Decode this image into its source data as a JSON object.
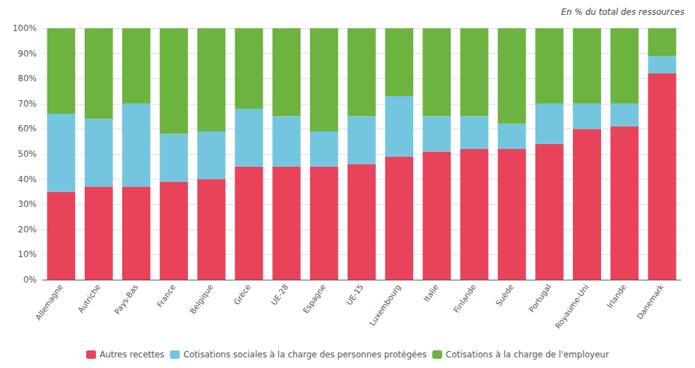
{
  "chart_data": {
    "type": "bar",
    "annotation": "En % du total des ressources",
    "categories": [
      "Allemagne",
      "Autriche",
      "Pays-Bas",
      "France",
      "Belgique",
      "Grèce",
      "UE-28",
      "Espagne",
      "UE-15",
      "Luxembourg",
      "Italie",
      "Finlande",
      "Suède",
      "Portugal",
      "Royaume-Uni",
      "Irlande",
      "Danemark"
    ],
    "series": [
      {
        "name": "Autres recettes",
        "color": "#E8435A",
        "values": [
          35,
          37,
          37,
          39,
          40,
          45,
          45,
          45,
          46,
          49,
          51,
          52,
          52,
          54,
          60,
          61,
          82
        ]
      },
      {
        "name": "Cotisations sociales à la charge des personnes protégées",
        "color": "#74C6E0",
        "values": [
          31,
          27,
          33,
          19,
          19,
          23,
          20,
          14,
          19,
          24,
          14,
          13,
          10,
          16,
          10,
          9,
          7
        ]
      },
      {
        "name": "Cotisations à la charge de l'employeur",
        "color": "#6DB33F",
        "values": [
          34,
          36,
          30,
          42,
          41,
          32,
          35,
          41,
          35,
          27,
          35,
          35,
          38,
          30,
          30,
          30,
          11
        ]
      }
    ],
    "stacked": true,
    "ylim": [
      0,
      100
    ],
    "yticks": [
      {
        "value": 0,
        "label": "0%"
      },
      {
        "value": 10,
        "label": "10%"
      },
      {
        "value": 20,
        "label": "20%"
      },
      {
        "value": 30,
        "label": "30%"
      },
      {
        "value": 40,
        "label": "40%"
      },
      {
        "value": 50,
        "label": "50%"
      },
      {
        "value": 60,
        "label": "60%"
      },
      {
        "value": 70,
        "label": "70%"
      },
      {
        "value": 80,
        "label": "80%"
      },
      {
        "value": 90,
        "label": "90%"
      },
      {
        "value": 100,
        "label": "100%"
      }
    ],
    "grid": true,
    "legend": "bottom"
  }
}
